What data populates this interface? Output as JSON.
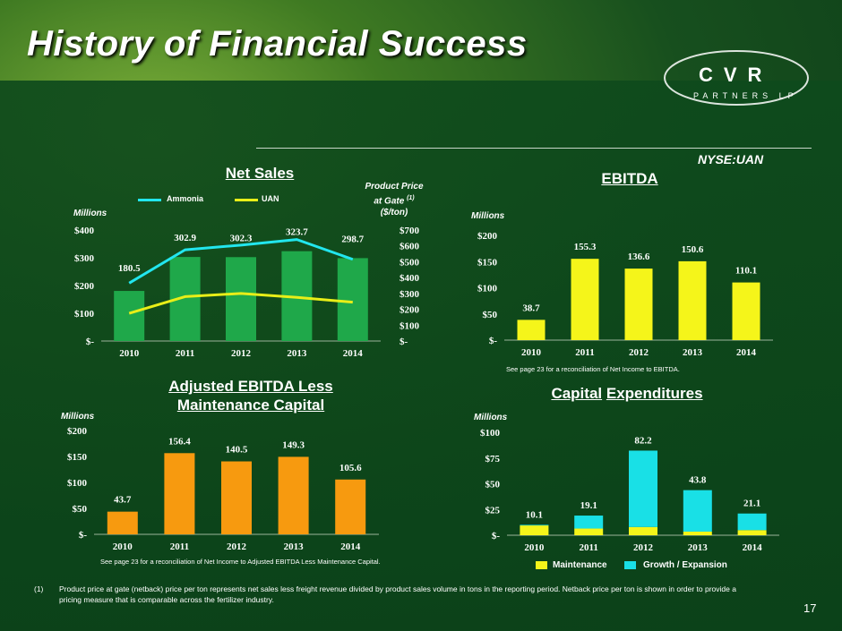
{
  "slide": {
    "title": "History of Financial Success",
    "ticker": "NYSE:UAN",
    "logo_letters": "CVR",
    "logo_sub": "PARTNERS LP",
    "page_number": "17",
    "footnote_marker": "(1)",
    "footnote": "Product price at gate (netback) price per ton represents net sales less freight revenue divided by product sales volume in tons in the reporting period.  Netback price per ton is shown in order to provide a pricing measure that is comparable across the fertilizer industry.",
    "colors": {
      "bar_green": "#1fa84a",
      "bar_yellow": "#f5f51a",
      "bar_orange": "#f79a0f",
      "bar_cyan": "#19e0e6",
      "line_cyan": "#22e6ee",
      "line_yellow": "#e8ee18"
    }
  },
  "chart_data": [
    {
      "id": "net_sales",
      "type": "bar",
      "title": "Net Sales",
      "unit_label": "Millions",
      "categories": [
        "2010",
        "2011",
        "2012",
        "2013",
        "2014"
      ],
      "values": [
        180.5,
        302.9,
        302.3,
        323.7,
        298.7
      ],
      "labels": [
        "180.5",
        "302.9",
        "302.3",
        "323.7",
        "298.7"
      ],
      "ylim": [
        0,
        400
      ],
      "yticks": [
        "$-",
        "$100",
        "$200",
        "$300",
        "$400"
      ],
      "secondary_axis": {
        "title_line1": "Product Price",
        "title_line2": "at Gate",
        "title_sup": "(1)",
        "title_line3": "($/ton)",
        "ylim": [
          0,
          700
        ],
        "yticks": [
          "$-",
          "$100",
          "$200",
          "$300",
          "$400",
          "$500",
          "$600",
          "$700"
        ]
      },
      "lines": [
        {
          "name": "Ammonia",
          "axis": "secondary",
          "values": [
            365,
            575,
            605,
            640,
            515
          ]
        },
        {
          "name": "UAN",
          "axis": "secondary",
          "values": [
            175,
            280,
            300,
            275,
            245
          ]
        }
      ]
    },
    {
      "id": "ebitda",
      "type": "bar",
      "title": "EBITDA",
      "unit_label": "Millions",
      "categories": [
        "2010",
        "2011",
        "2012",
        "2013",
        "2014"
      ],
      "values": [
        38.7,
        155.3,
        136.6,
        150.6,
        110.1
      ],
      "labels": [
        "38.7",
        "155.3",
        "136.6",
        "150.6",
        "110.1"
      ],
      "ylim": [
        0,
        200
      ],
      "yticks": [
        "$-",
        "$50",
        "$100",
        "$150",
        "$200"
      ],
      "note": "See page 23 for a reconciliation of Net Income to EBITDA."
    },
    {
      "id": "adj_ebitda",
      "type": "bar",
      "title_line1": "Adjusted EBITDA Less",
      "title_line2": "Maintenance Capital",
      "unit_label": "Millions",
      "categories": [
        "2010",
        "2011",
        "2012",
        "2013",
        "2014"
      ],
      "values": [
        43.7,
        156.4,
        140.5,
        149.3,
        105.6
      ],
      "labels": [
        "43.7",
        "156.4",
        "140.5",
        "149.3",
        "105.6"
      ],
      "ylim": [
        0,
        200
      ],
      "yticks": [
        "$-",
        "$50",
        "$100",
        "$150",
        "$200"
      ],
      "note": "See page 23 for a reconciliation of Net Income to Adjusted EBITDA Less Maintenance Capital."
    },
    {
      "id": "capex",
      "type": "bar",
      "stacked": true,
      "title_part1": "Capital",
      "title_part2": "Expenditures",
      "unit_label": "Millions",
      "categories": [
        "2010",
        "2011",
        "2012",
        "2013",
        "2014"
      ],
      "totals": [
        10.1,
        19.1,
        82.2,
        43.8,
        21.1
      ],
      "labels": [
        "10.1",
        "19.1",
        "82.2",
        "43.8",
        "21.1"
      ],
      "series": [
        {
          "name": "Maintenance",
          "values": [
            9.5,
            6.5,
            8.0,
            3.5,
            5.0
          ]
        },
        {
          "name": "Growth / Expansion",
          "values": [
            0.6,
            12.6,
            74.2,
            40.3,
            16.1
          ]
        }
      ],
      "ylim": [
        0,
        100
      ],
      "yticks": [
        "$-",
        "$25",
        "$50",
        "$75",
        "$100"
      ]
    }
  ]
}
